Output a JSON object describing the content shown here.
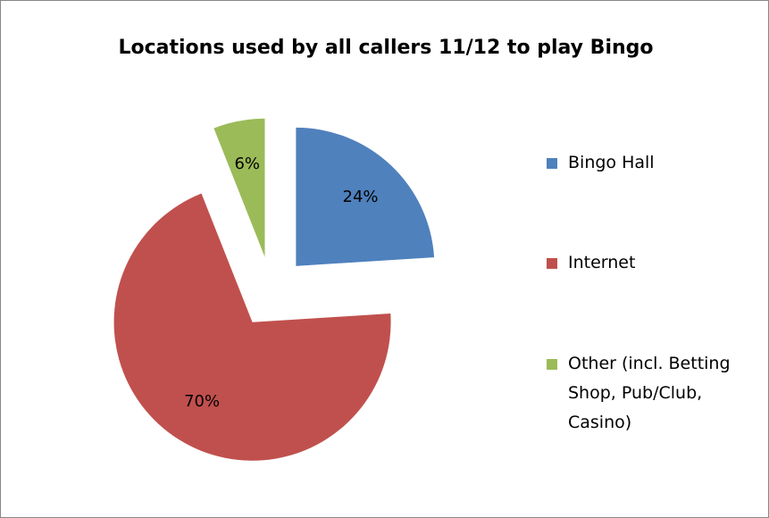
{
  "chart_data": {
    "type": "pie",
    "title": "Locations used by all callers 11/12 to play Bingo",
    "categories": [
      "Bingo Hall",
      "Internet",
      "Other (incl. Betting Shop, Pub/Club, Casino)"
    ],
    "values": [
      24,
      70,
      6
    ],
    "value_labels": [
      "24%",
      "70%",
      "6%"
    ],
    "colors": [
      "#4f81bd",
      "#c0504d",
      "#9bbb59"
    ],
    "legend": "right"
  }
}
